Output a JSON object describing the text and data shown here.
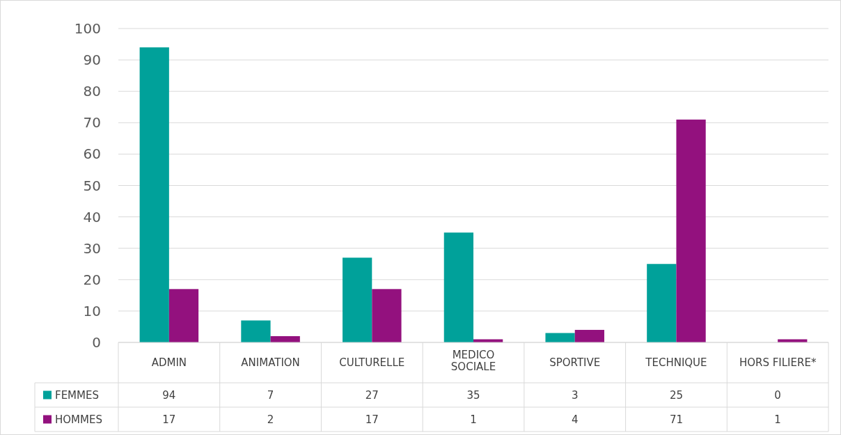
{
  "chart_data": {
    "type": "bar",
    "categories": [
      "ADMIN",
      "ANIMATION",
      "CULTURELLE",
      "MEDICO SOCIALE",
      "SPORTIVE",
      "TECHNIQUE",
      "HORS FILIERE*"
    ],
    "series": [
      {
        "name": "FEMMES",
        "color": "#00a19a",
        "values": [
          94,
          7,
          27,
          35,
          3,
          25,
          0
        ]
      },
      {
        "name": "HOMMES",
        "color": "#93117e",
        "values": [
          17,
          2,
          17,
          1,
          4,
          71,
          1
        ]
      }
    ],
    "ylim": [
      0,
      100
    ],
    "yticks": [
      0,
      10,
      20,
      30,
      40,
      50,
      60,
      70,
      80,
      90,
      100
    ],
    "grid": "y",
    "legend": "bottom left",
    "data_labels": true
  }
}
